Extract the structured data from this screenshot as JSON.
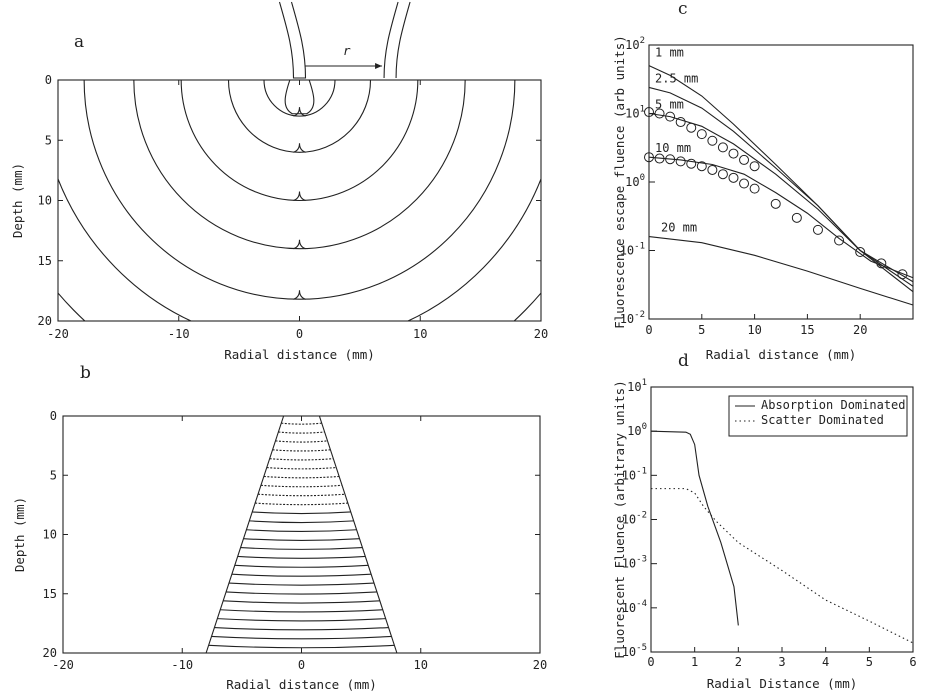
{
  "chart_data": [
    {
      "panel": "a",
      "type": "line",
      "description_marks": "contour",
      "xlabel": "Radial distance (mm)",
      "ylabel": "Depth (mm)",
      "xlim": [
        -20,
        20
      ],
      "ylim": [
        0,
        20
      ],
      "y_inverted": true,
      "xticks": [
        "-20",
        "-10",
        "0",
        "10",
        "20"
      ],
      "yticks": [
        "0",
        "5",
        "10",
        "15",
        "20"
      ],
      "inset_label": "r",
      "contour_depths": [
        3,
        6,
        10,
        14,
        18.2,
        22,
        27
      ],
      "contour_cusp_depths": [
        3,
        6,
        10,
        14,
        18.2
      ],
      "grid": false
    },
    {
      "panel": "b",
      "type": "line",
      "description_marks": "cone",
      "xlabel": "Radial distance (mm)",
      "ylabel": "Depth (mm)",
      "xlim": [
        -20,
        20
      ],
      "ylim": [
        0,
        20
      ],
      "y_inverted": true,
      "xticks": [
        "-20",
        "-10",
        "0",
        "10",
        "20"
      ],
      "yticks": [
        "0",
        "5",
        "10",
        "15",
        "20"
      ],
      "cone_halfwidth_top": 1.5,
      "cone_halfwidth_bottom": 8,
      "grid": false
    },
    {
      "panel": "c",
      "type": "line",
      "xlabel": "Radial distance (mm)",
      "ylabel": "Fluorescence escape fluence (arb units)",
      "xlim": [
        0,
        25
      ],
      "ylim": [
        0.01,
        100
      ],
      "yscale": "log",
      "xticks": [
        "0",
        "5",
        "10",
        "15",
        "20"
      ],
      "yticks": [
        "10^-2",
        "10^-1",
        "10^0",
        "10^1",
        "10^2"
      ],
      "series": [
        {
          "name": "1 mm",
          "x": [
            0,
            2,
            5,
            8,
            12,
            16,
            20,
            25
          ],
          "y": [
            50,
            36,
            18,
            7,
            1.8,
            0.45,
            0.1,
            0.025
          ]
        },
        {
          "name": "2.5 mm",
          "x": [
            0,
            2,
            5,
            8,
            12,
            16,
            20,
            25
          ],
          "y": [
            24,
            20,
            12,
            5.5,
            1.6,
            0.45,
            0.1,
            0.03
          ]
        },
        {
          "name": "5 mm",
          "x": [
            0,
            2,
            5,
            8,
            12,
            16,
            20,
            25
          ],
          "y": [
            10,
            9,
            6.5,
            3.6,
            1.3,
            0.4,
            0.1,
            0.035
          ]
        },
        {
          "name": "10 mm",
          "x": [
            0,
            3,
            6,
            9,
            12,
            15,
            18,
            21,
            25
          ],
          "y": [
            2.3,
            2.1,
            1.8,
            1.3,
            0.7,
            0.35,
            0.15,
            0.07,
            0.04
          ]
        },
        {
          "name": "20 mm",
          "x": [
            0,
            5,
            10,
            15,
            20,
            25
          ],
          "y": [
            0.16,
            0.13,
            0.085,
            0.05,
            0.028,
            0.016
          ]
        }
      ],
      "markers": [
        {
          "x": [
            0,
            1,
            2,
            3,
            4,
            5,
            6,
            7,
            8,
            9,
            10
          ],
          "y": [
            10.5,
            10,
            9,
            7.5,
            6.2,
            5,
            4,
            3.2,
            2.6,
            2.1,
            1.7
          ]
        },
        {
          "x": [
            0,
            1,
            2,
            3,
            4,
            5,
            6,
            7,
            8,
            9,
            10,
            12,
            14,
            16,
            18,
            20,
            22,
            24
          ],
          "y": [
            2.3,
            2.2,
            2.15,
            2.0,
            1.85,
            1.7,
            1.5,
            1.3,
            1.15,
            0.95,
            0.8,
            0.48,
            0.3,
            0.2,
            0.14,
            0.095,
            0.065,
            0.045
          ]
        }
      ],
      "grid": false
    },
    {
      "panel": "d",
      "type": "line",
      "xlabel": "Radial Distance (mm)",
      "ylabel": "Fluorescent Fluence (arbitrary units)",
      "xlim": [
        0,
        6
      ],
      "ylim": [
        1e-05,
        10
      ],
      "yscale": "log",
      "xticks": [
        "0",
        "1",
        "2",
        "3",
        "4",
        "5",
        "6"
      ],
      "yticks": [
        "10^-5",
        "10^-4",
        "10^-3",
        "10^-2",
        "10^-1",
        "10^0",
        "10^1"
      ],
      "legend_position": "top-right",
      "series": [
        {
          "name": "Absorption Dominated",
          "style": "solid",
          "x": [
            0,
            0.8,
            0.9,
            1.0,
            1.1,
            1.3,
            1.6,
            1.9,
            2.0
          ],
          "y": [
            1,
            0.95,
            0.85,
            0.5,
            0.1,
            0.02,
            0.003,
            0.0003,
            4e-05
          ]
        },
        {
          "name": "Scatter Dominated",
          "style": "dotted",
          "x": [
            0,
            0.8,
            1.0,
            1.2,
            1.5,
            2,
            3,
            4,
            5,
            6
          ],
          "y": [
            0.05,
            0.05,
            0.04,
            0.02,
            0.009,
            0.003,
            0.0007,
            0.00015,
            5e-05,
            1.6e-05
          ]
        }
      ],
      "grid": false
    }
  ]
}
